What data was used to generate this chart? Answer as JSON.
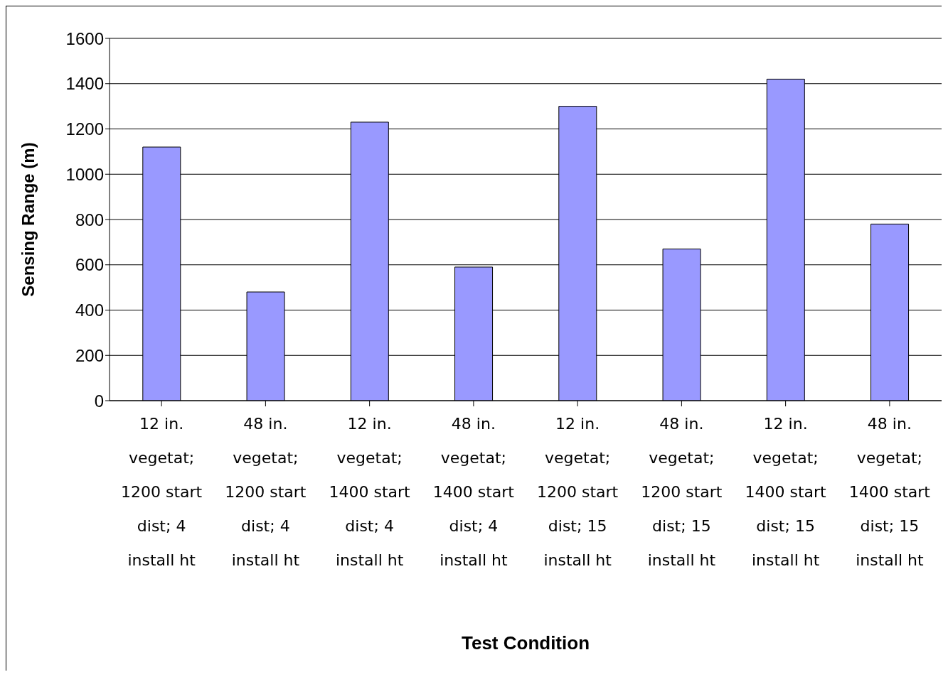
{
  "chart_data": {
    "type": "bar",
    "xlabel": "Test Condition",
    "ylabel": "Sensing Range (m)",
    "categories": [
      "12 in. vegetat; 1200 start dist; 4 install ht",
      "48 in. vegetat; 1200 start dist; 4 install ht",
      "12 in. vegetat; 1400 start dist; 4 install ht",
      "48 in. vegetat; 1400 start dist; 4 install ht",
      "12 in. vegetat; 1200 start dist; 15 install ht",
      "48 in. vegetat; 1200 start dist; 15 install ht",
      "12 in. vegetat; 1400 start dist; 15 install ht",
      "48 in. vegetat; 1400 start dist; 15 install ht"
    ],
    "values": [
      1120,
      480,
      1230,
      590,
      1300,
      670,
      1420,
      780
    ],
    "color": "#9999ff",
    "ylim": [
      0,
      1600
    ],
    "yticks": [
      0,
      200,
      400,
      600,
      800,
      1000,
      1200,
      1400,
      1600
    ],
    "grid": "y",
    "legend": false
  }
}
